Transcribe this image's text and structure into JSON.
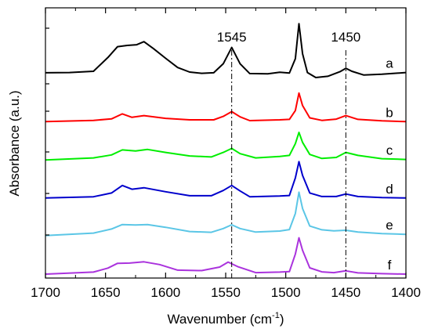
{
  "chart_data": {
    "type": "line",
    "xlabel": "Wavenumber (cm",
    "xlabel_sup": "-1",
    "xlabel_tail": ")",
    "ylabel": "Absorbance (a.u.)",
    "xlim": [
      1700,
      1400
    ],
    "x_ticks": [
      "1700",
      "1650",
      "1600",
      "1550",
      "1500",
      "1450",
      "1400"
    ],
    "x_tick_values": [
      1700,
      1650,
      1600,
      1550,
      1500,
      1450,
      1400
    ],
    "y_tick_labels": false,
    "grid": false,
    "annotations": [
      {
        "text": "1545",
        "x": 1545
      },
      {
        "text": "1450",
        "x": 1450
      }
    ],
    "series": [
      {
        "label": "a",
        "color": "#000000",
        "baseline": 0.0,
        "points": [
          [
            1700,
            4.4
          ],
          [
            1680,
            4.5
          ],
          [
            1660,
            5.0
          ],
          [
            1648,
            10.5
          ],
          [
            1640,
            14.8
          ],
          [
            1632,
            15.3
          ],
          [
            1624,
            15.6
          ],
          [
            1618,
            16.8
          ],
          [
            1610,
            14.0
          ],
          [
            1600,
            10.2
          ],
          [
            1590,
            6.5
          ],
          [
            1580,
            4.7
          ],
          [
            1570,
            4.2
          ],
          [
            1560,
            4.4
          ],
          [
            1552,
            8.0
          ],
          [
            1545,
            14.5
          ],
          [
            1538,
            8.0
          ],
          [
            1530,
            4.1
          ],
          [
            1515,
            4.0
          ],
          [
            1505,
            4.6
          ],
          [
            1497,
            4.3
          ],
          [
            1492,
            10.0
          ],
          [
            1489,
            24.0
          ],
          [
            1486,
            12.0
          ],
          [
            1482,
            4.5
          ],
          [
            1475,
            2.5
          ],
          [
            1465,
            3.0
          ],
          [
            1455,
            4.8
          ],
          [
            1450,
            6.2
          ],
          [
            1445,
            5.0
          ],
          [
            1435,
            3.5
          ],
          [
            1420,
            3.8
          ],
          [
            1400,
            4.5
          ]
        ]
      },
      {
        "label": "b",
        "color": "#ff0000",
        "baseline": 1.0,
        "points": [
          [
            1700,
            0.1
          ],
          [
            1660,
            0.6
          ],
          [
            1645,
            1.2
          ],
          [
            1636,
            3.2
          ],
          [
            1628,
            1.8
          ],
          [
            1618,
            2.5
          ],
          [
            1600,
            1.4
          ],
          [
            1580,
            0.8
          ],
          [
            1560,
            0.8
          ],
          [
            1552,
            2.2
          ],
          [
            1545,
            4.1
          ],
          [
            1538,
            2.0
          ],
          [
            1530,
            0.5
          ],
          [
            1505,
            0.8
          ],
          [
            1497,
            1.0
          ],
          [
            1492,
            4.5
          ],
          [
            1489,
            11.5
          ],
          [
            1486,
            6.5
          ],
          [
            1480,
            1.6
          ],
          [
            1470,
            0.6
          ],
          [
            1458,
            1.1
          ],
          [
            1450,
            2.5
          ],
          [
            1440,
            1.0
          ],
          [
            1420,
            0.4
          ],
          [
            1400,
            0.1
          ]
        ]
      },
      {
        "label": "c",
        "color": "#00ee00",
        "baseline": 2.0,
        "points": [
          [
            1700,
            0.0
          ],
          [
            1660,
            0.8
          ],
          [
            1645,
            2.0
          ],
          [
            1636,
            4.0
          ],
          [
            1625,
            3.6
          ],
          [
            1615,
            4.2
          ],
          [
            1600,
            3.0
          ],
          [
            1580,
            1.6
          ],
          [
            1562,
            1.2
          ],
          [
            1552,
            3.0
          ],
          [
            1545,
            4.6
          ],
          [
            1538,
            2.5
          ],
          [
            1525,
            0.8
          ],
          [
            1505,
            1.4
          ],
          [
            1497,
            1.8
          ],
          [
            1492,
            6.5
          ],
          [
            1489,
            11.0
          ],
          [
            1486,
            7.0
          ],
          [
            1480,
            2.2
          ],
          [
            1470,
            0.6
          ],
          [
            1458,
            1.0
          ],
          [
            1450,
            3.0
          ],
          [
            1440,
            1.8
          ],
          [
            1420,
            0.5
          ],
          [
            1400,
            0.2
          ]
        ]
      },
      {
        "label": "d",
        "color": "#0000cc",
        "baseline": 3.0,
        "points": [
          [
            1700,
            0.0
          ],
          [
            1660,
            0.5
          ],
          [
            1645,
            2.0
          ],
          [
            1636,
            5.0
          ],
          [
            1628,
            3.5
          ],
          [
            1618,
            4.1
          ],
          [
            1600,
            2.5
          ],
          [
            1580,
            0.9
          ],
          [
            1562,
            0.9
          ],
          [
            1552,
            3.0
          ],
          [
            1545,
            5.0
          ],
          [
            1538,
            2.8
          ],
          [
            1530,
            0.5
          ],
          [
            1505,
            0.8
          ],
          [
            1497,
            1.0
          ],
          [
            1492,
            8.0
          ],
          [
            1489,
            14.5
          ],
          [
            1486,
            9.0
          ],
          [
            1480,
            2.0
          ],
          [
            1470,
            0.6
          ],
          [
            1458,
            0.6
          ],
          [
            1450,
            1.6
          ],
          [
            1440,
            0.6
          ],
          [
            1420,
            0.2
          ],
          [
            1400,
            0.0
          ]
        ]
      },
      {
        "label": "e",
        "color": "#5bc6e6",
        "baseline": 4.0,
        "points": [
          [
            1700,
            0.2
          ],
          [
            1660,
            1.2
          ],
          [
            1645,
            2.8
          ],
          [
            1636,
            4.6
          ],
          [
            1625,
            4.4
          ],
          [
            1615,
            4.6
          ],
          [
            1600,
            3.5
          ],
          [
            1580,
            1.8
          ],
          [
            1562,
            1.5
          ],
          [
            1552,
            3.0
          ],
          [
            1545,
            4.5
          ],
          [
            1538,
            3.0
          ],
          [
            1525,
            1.6
          ],
          [
            1505,
            2.0
          ],
          [
            1497,
            2.6
          ],
          [
            1492,
            9.0
          ],
          [
            1489,
            17.5
          ],
          [
            1486,
            11.0
          ],
          [
            1480,
            4.0
          ],
          [
            1470,
            2.5
          ],
          [
            1460,
            2.1
          ],
          [
            1450,
            2.3
          ],
          [
            1440,
            1.6
          ],
          [
            1420,
            1.0
          ],
          [
            1400,
            0.7
          ]
        ]
      },
      {
        "label": "f",
        "color": "#aa33dd",
        "baseline": 5.0,
        "points": [
          [
            1700,
            0.0
          ],
          [
            1660,
            0.8
          ],
          [
            1648,
            2.4
          ],
          [
            1640,
            4.3
          ],
          [
            1630,
            4.4
          ],
          [
            1618,
            4.9
          ],
          [
            1605,
            3.8
          ],
          [
            1590,
            1.6
          ],
          [
            1570,
            1.4
          ],
          [
            1555,
            2.8
          ],
          [
            1548,
            4.8
          ],
          [
            1540,
            3.0
          ],
          [
            1525,
            0.6
          ],
          [
            1505,
            0.8
          ],
          [
            1497,
            1.0
          ],
          [
            1492,
            8.0
          ],
          [
            1489,
            14.5
          ],
          [
            1486,
            9.5
          ],
          [
            1480,
            2.5
          ],
          [
            1470,
            0.9
          ],
          [
            1460,
            0.6
          ],
          [
            1450,
            1.3
          ],
          [
            1440,
            0.5
          ],
          [
            1420,
            0.2
          ],
          [
            1400,
            0.0
          ]
        ]
      }
    ]
  }
}
